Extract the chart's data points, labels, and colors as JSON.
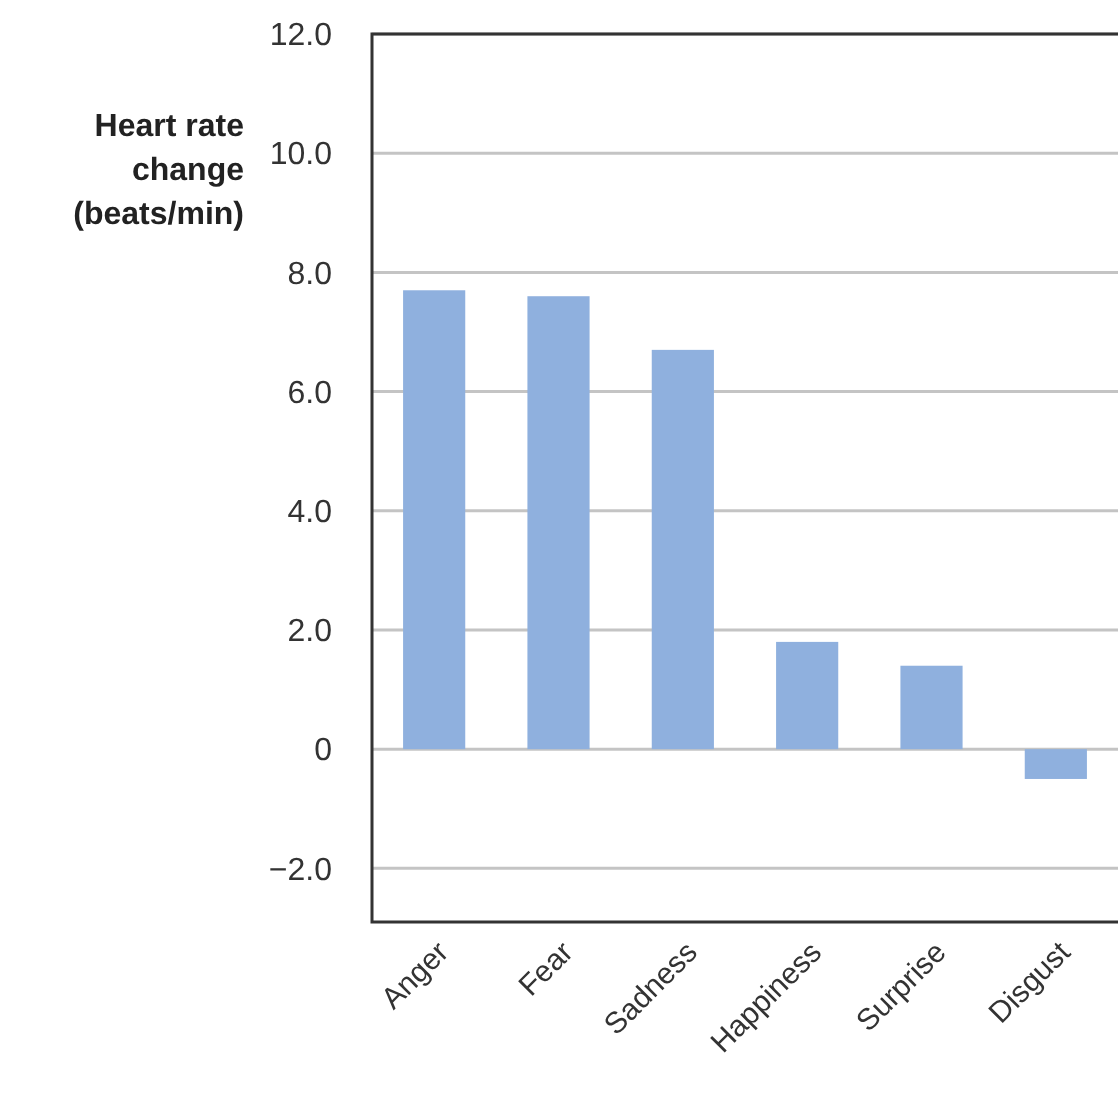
{
  "chart_data": {
    "type": "bar",
    "ylabel": "Heart rate change (beats/min)",
    "categories": [
      "Anger",
      "Fear",
      "Sadness",
      "Happiness",
      "Surprise",
      "Disgust"
    ],
    "values": [
      7.7,
      7.6,
      6.7,
      1.8,
      1.4,
      -0.5
    ],
    "color": "#8fb0de",
    "ylim": [
      -2.9,
      12
    ],
    "yticks": [
      {
        "value": -2,
        "label": "−2.0"
      },
      {
        "value": 0,
        "label": "0"
      },
      {
        "value": 2,
        "label": "2.0"
      },
      {
        "value": 4,
        "label": "4.0"
      },
      {
        "value": 6,
        "label": "6.0"
      },
      {
        "value": 8,
        "label": "8.0"
      },
      {
        "value": 10,
        "label": "10.0"
      },
      {
        "value": 12,
        "label": "12.0"
      }
    ],
    "grid": "y"
  }
}
